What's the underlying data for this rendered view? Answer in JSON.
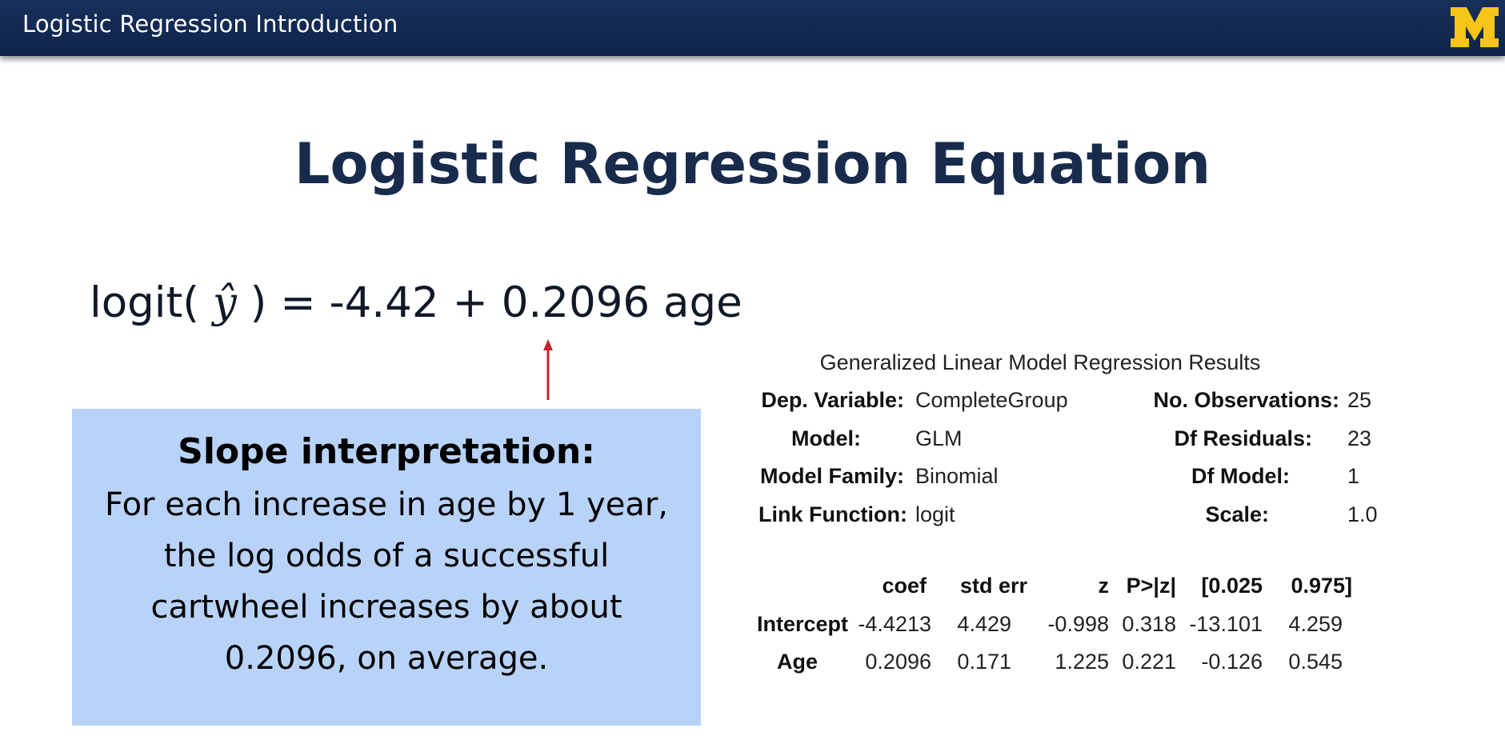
{
  "header": {
    "title": "Logistic Regression Introduction",
    "logo_letter": "M",
    "logo_icon": "university-block-m-logo",
    "bar_color": "#122a54",
    "logo_color": "#f5c518"
  },
  "slide": {
    "title": "Logistic Regression Equation"
  },
  "equation": {
    "lhs_prefix": "logit(",
    "yhat": "ŷ",
    "lhs_suffix": ")",
    "rhs": "= -4.42 + 0.2096 age"
  },
  "annotation": {
    "arrow_icon": "red-up-arrow-icon",
    "arrow_color": "#c0262b"
  },
  "slope_box": {
    "heading": "Slope interpretation:",
    "lines": [
      "For each increase in age by 1 year,",
      "the log odds of a successful",
      "cartwheel increases by about",
      "0.2096, on average."
    ],
    "background": "#b8d3f7"
  },
  "glm_results": {
    "title": "Generalized Linear Model Regression Results",
    "left_keys": [
      "Dep. Variable:",
      "Model:",
      "Model Family:",
      "Link Function:"
    ],
    "left_values": [
      "CompleteGroup",
      "GLM",
      "Binomial",
      "logit"
    ],
    "right_keys": [
      "No. Observations:",
      "Df Residuals:",
      "Df Model:",
      "Scale:"
    ],
    "right_values": [
      "25",
      "23",
      "1",
      "1.0"
    ]
  },
  "coef_table": {
    "headers": [
      "coef",
      "std err",
      "z",
      "P>|z|",
      "[0.025",
      "0.975]"
    ],
    "rows": [
      {
        "label": "Intercept",
        "cells": [
          "-4.4213",
          "4.429",
          "-0.998",
          "0.318",
          "-13.101",
          "4.259"
        ]
      },
      {
        "label": "Age",
        "cells": [
          "0.2096",
          "0.171",
          "1.225",
          "0.221",
          "-0.126",
          "0.545"
        ]
      }
    ]
  }
}
